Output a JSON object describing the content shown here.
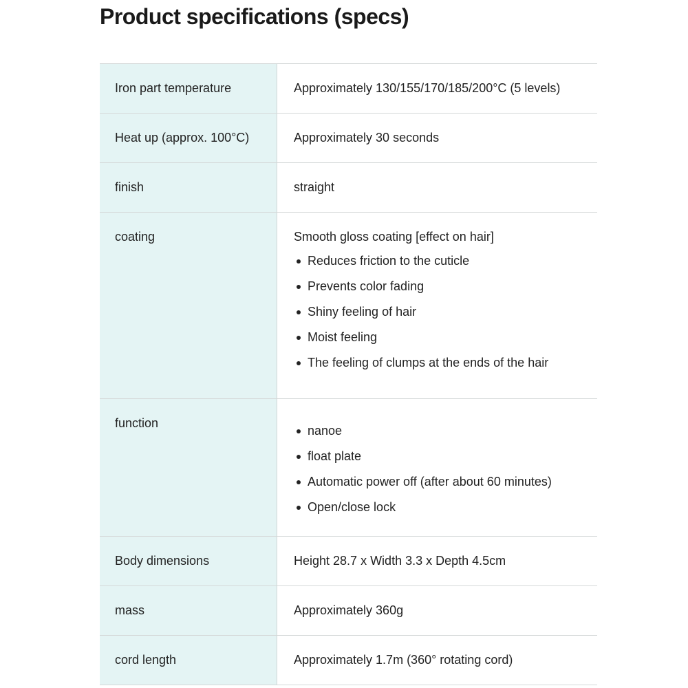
{
  "title": "Product specifications (specs)",
  "colors": {
    "label_bg": "#e4f4f4",
    "border": "#d4d8d8"
  },
  "rows": [
    {
      "label": "Iron part temperature",
      "value": "Approximately 130/155/170/185/200°C (5 levels)"
    },
    {
      "label": "Heat up (approx. 100°C)",
      "value": "Approximately 30 seconds"
    },
    {
      "label": "finish",
      "value": "straight"
    },
    {
      "label": "coating",
      "value": "Smooth gloss coating [effect on hair]",
      "bullets": [
        "Reduces friction to the cuticle",
        "Prevents color fading",
        "Shiny feeling of hair",
        "Moist feeling",
        "The feeling of clumps at the ends of the hair"
      ]
    },
    {
      "label": "function",
      "bullets": [
        "nanoe",
        "float plate",
        "Automatic power off (after about 60 minutes)",
        "Open/close lock"
      ]
    },
    {
      "label": "Body dimensions",
      "value": "Height 28.7 x Width 3.3 x Depth 4.5cm"
    },
    {
      "label": "mass",
      "value": "Approximately 360g"
    },
    {
      "label": "cord length",
      "value": "Approximately 1.7m (360° rotating cord)"
    }
  ]
}
